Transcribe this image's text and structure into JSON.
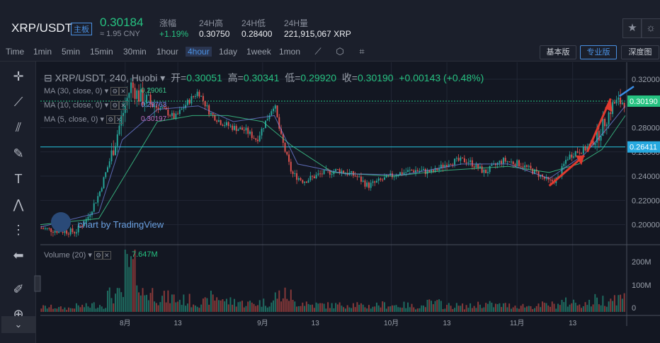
{
  "header": {
    "pair": "XRP/USDT",
    "badge": "主板",
    "last_price": "0.30184",
    "cny": "≈ 1.95 CNY",
    "stats": [
      {
        "label": "涨幅",
        "value": "+1.19%",
        "tone": "green"
      },
      {
        "label": "24H高",
        "value": "0.30750",
        "tone": "white"
      },
      {
        "label": "24H低",
        "value": "0.28400",
        "tone": "white"
      },
      {
        "label": "24H量",
        "value": "221,915,067 XRP",
        "tone": "white"
      }
    ],
    "buttons": [
      "star-icon",
      "settings-sun-icon"
    ]
  },
  "toolbar": {
    "timeframes": [
      "Time",
      "1min",
      "5min",
      "15min",
      "30min",
      "1hour",
      "4hour",
      "1day",
      "1week",
      "1mon"
    ],
    "active_timeframe": "4hour",
    "tools": [
      "candle-type-icon",
      "indicator-icon",
      "snapshot-icon"
    ],
    "views": [
      "基本版",
      "专业版",
      "深度图"
    ],
    "active_view": "专业版"
  },
  "left_tools": [
    "crosshair-icon",
    "trend-line-icon",
    "fib-icon",
    "brush-icon",
    "text-icon",
    "pattern-icon",
    "measure-icon",
    "back-arrow-icon",
    "ruler-icon",
    "zoom-in-icon",
    "collapse-icon"
  ],
  "legend": {
    "title": "XRP/USDT, 240, Huobi",
    "open_label": "开=",
    "open": "0.30051",
    "high_label": "高=",
    "high": "0.30341",
    "low_label": "低=",
    "low": "0.29920",
    "close_label": "收=",
    "close": "0.30190",
    "change": "+0.00143 (+0.48%)",
    "ma": [
      {
        "label": "MA (30, close, 0)",
        "value": "0.29061",
        "color": "#3cc68a"
      },
      {
        "label": "MA (10, close, 0)",
        "value": "0.29763",
        "color": "#7a8cf0"
      },
      {
        "label": "MA (5, close, 0)",
        "value": "0.30197",
        "color": "#c070c0"
      }
    ],
    "volume_label": "Volume (20)",
    "volume_value": "7.647M",
    "watermark": "chart by TradingView"
  },
  "chart_data": {
    "type": "candlestick",
    "title": "XRP/USDT, 240, Huobi",
    "x_ticks": [
      "8月",
      "13",
      "9月",
      "13",
      "10月",
      "13",
      "11月",
      "13"
    ],
    "y_ticks": [
      0.32,
      0.3,
      0.28,
      0.26,
      0.24,
      0.22,
      0.2
    ],
    "y_range": [
      0.184,
      0.334
    ],
    "volume_ticks": [
      "200M",
      "100M",
      "0"
    ],
    "horizontal_lines": [
      0.26411,
      0.3019
    ],
    "price_labels": [
      {
        "value": "0.30190",
        "color": "#26c281"
      },
      {
        "value": "0.26411",
        "color": "#26a9e0"
      }
    ],
    "price_path": [
      [
        0,
        0.197
      ],
      [
        0.03,
        0.195
      ],
      [
        0.06,
        0.194
      ],
      [
        0.08,
        0.205
      ],
      [
        0.1,
        0.225
      ],
      [
        0.12,
        0.255
      ],
      [
        0.14,
        0.29
      ],
      [
        0.155,
        0.315
      ],
      [
        0.17,
        0.305
      ],
      [
        0.19,
        0.3
      ],
      [
        0.21,
        0.295
      ],
      [
        0.23,
        0.288
      ],
      [
        0.25,
        0.3
      ],
      [
        0.27,
        0.31
      ],
      [
        0.29,
        0.292
      ],
      [
        0.31,
        0.284
      ],
      [
        0.33,
        0.28
      ],
      [
        0.35,
        0.278
      ],
      [
        0.37,
        0.27
      ],
      [
        0.385,
        0.285
      ],
      [
        0.4,
        0.3
      ],
      [
        0.41,
        0.275
      ],
      [
        0.42,
        0.258
      ],
      [
        0.43,
        0.242
      ],
      [
        0.45,
        0.236
      ],
      [
        0.48,
        0.242
      ],
      [
        0.51,
        0.245
      ],
      [
        0.54,
        0.24
      ],
      [
        0.56,
        0.232
      ],
      [
        0.58,
        0.236
      ],
      [
        0.61,
        0.242
      ],
      [
        0.64,
        0.245
      ],
      [
        0.67,
        0.243
      ],
      [
        0.7,
        0.252
      ],
      [
        0.73,
        0.253
      ],
      [
        0.76,
        0.243
      ],
      [
        0.79,
        0.253
      ],
      [
        0.82,
        0.25
      ],
      [
        0.85,
        0.242
      ],
      [
        0.87,
        0.235
      ],
      [
        0.885,
        0.238
      ],
      [
        0.9,
        0.255
      ],
      [
        0.915,
        0.26
      ],
      [
        0.93,
        0.262
      ],
      [
        0.95,
        0.27
      ],
      [
        0.965,
        0.285
      ],
      [
        0.98,
        0.3
      ],
      [
        1.0,
        0.302
      ]
    ],
    "ma30_path": [
      [
        0,
        0.2
      ],
      [
        0.1,
        0.205
      ],
      [
        0.15,
        0.245
      ],
      [
        0.2,
        0.285
      ],
      [
        0.26,
        0.29
      ],
      [
        0.32,
        0.29
      ],
      [
        0.38,
        0.285
      ],
      [
        0.43,
        0.265
      ],
      [
        0.5,
        0.243
      ],
      [
        0.6,
        0.24
      ],
      [
        0.7,
        0.245
      ],
      [
        0.8,
        0.248
      ],
      [
        0.87,
        0.243
      ],
      [
        0.92,
        0.25
      ],
      [
        0.96,
        0.262
      ],
      [
        1.0,
        0.29
      ]
    ],
    "ma10_path": [
      [
        0,
        0.198
      ],
      [
        0.1,
        0.21
      ],
      [
        0.14,
        0.27
      ],
      [
        0.2,
        0.295
      ],
      [
        0.27,
        0.298
      ],
      [
        0.33,
        0.285
      ],
      [
        0.4,
        0.29
      ],
      [
        0.44,
        0.25
      ],
      [
        0.52,
        0.242
      ],
      [
        0.62,
        0.241
      ],
      [
        0.72,
        0.25
      ],
      [
        0.8,
        0.25
      ],
      [
        0.87,
        0.238
      ],
      [
        0.93,
        0.258
      ],
      [
        0.97,
        0.28
      ],
      [
        1.0,
        0.298
      ]
    ],
    "volume_profile": [
      0.1,
      0.08,
      0.12,
      0.15,
      0.35,
      0.9,
      0.4,
      0.3,
      0.25,
      0.2,
      0.3,
      0.22,
      0.18,
      0.2,
      0.35,
      0.2,
      0.15,
      0.14,
      0.16,
      0.12,
      0.15,
      0.14,
      0.12,
      0.18,
      0.13,
      0.12,
      0.16,
      0.14,
      0.13,
      0.12,
      0.15,
      0.2,
      0.18,
      0.25,
      0.3
    ]
  }
}
